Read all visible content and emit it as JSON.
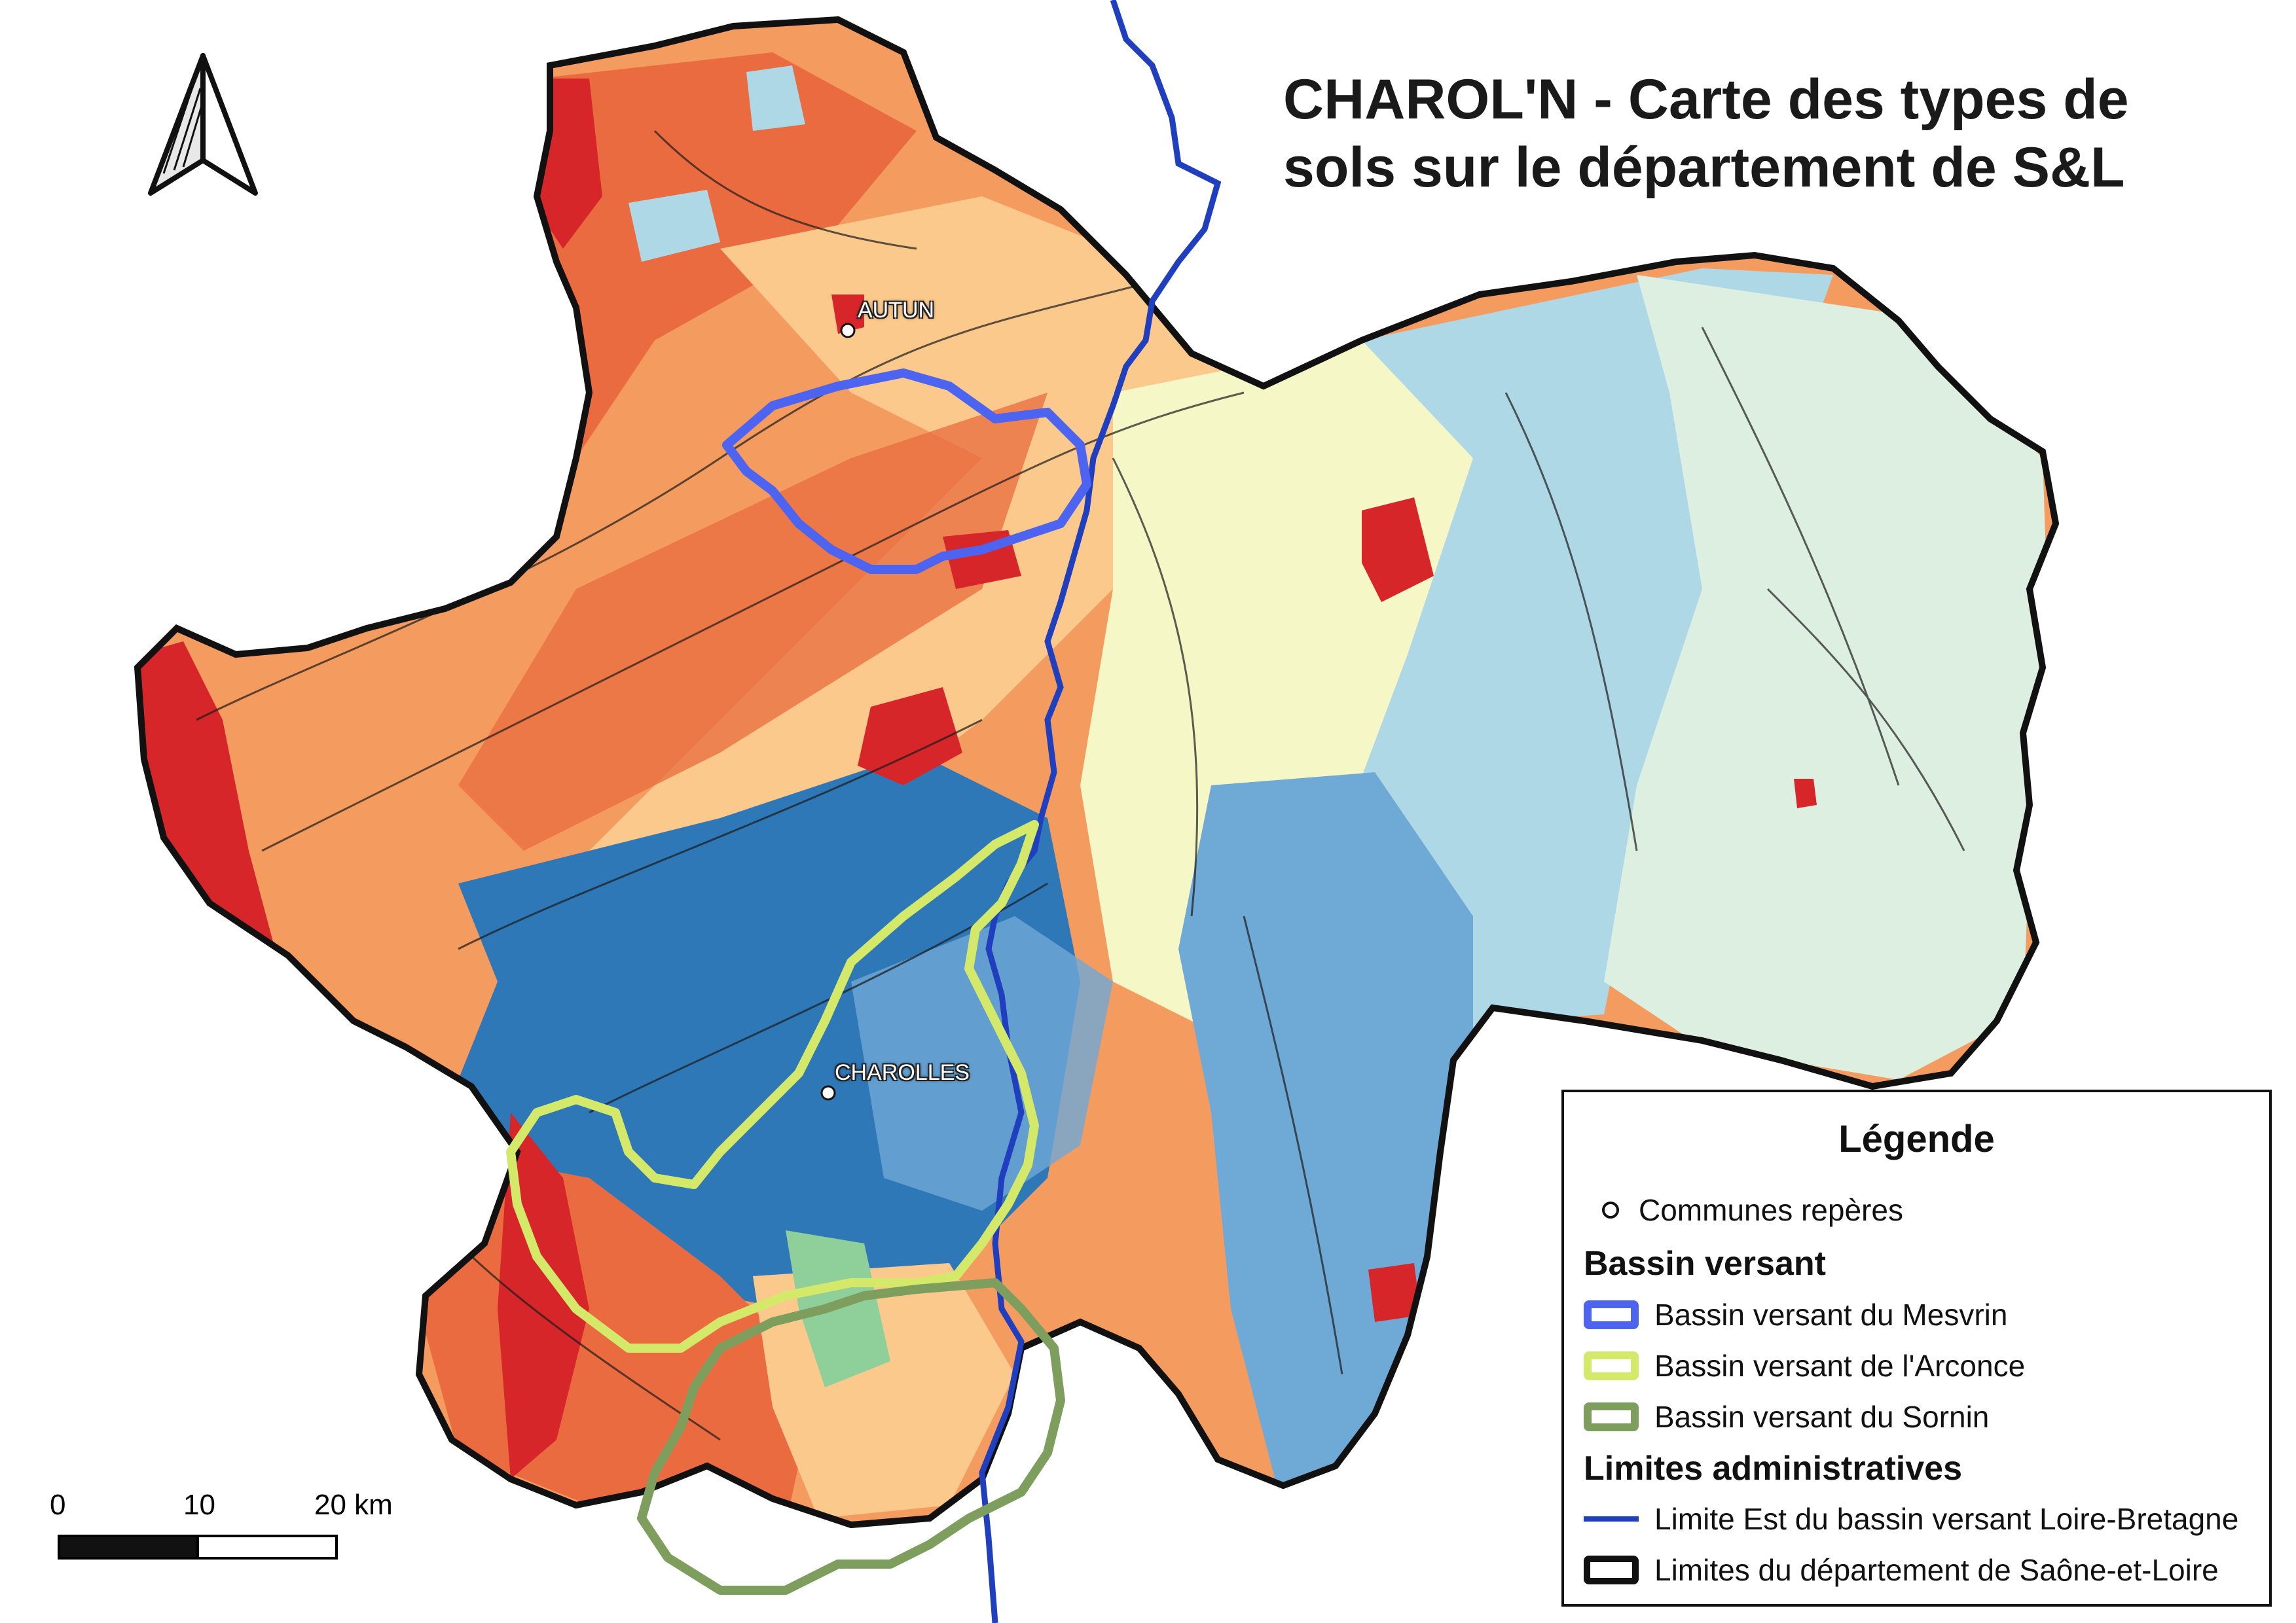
{
  "title": {
    "line1": "CHAROL'N - Carte des types de",
    "line2": "sols sur le département de S&L"
  },
  "towns": [
    {
      "name": "AUTUN"
    },
    {
      "name": "CHAROLLES"
    }
  ],
  "scale": {
    "ticks": [
      "0",
      "10",
      "20 km"
    ]
  },
  "legend": {
    "title": "Légende",
    "point_label": "Communes repères",
    "section_bassin": "Bassin versant",
    "bassins": [
      {
        "label": "Bassin versant du Mesvrin",
        "color": "#4d64f0"
      },
      {
        "label": "Bassin versant de l'Arconce",
        "color": "#d4e86a"
      },
      {
        "label": "Bassin versant du Sornin",
        "color": "#7e9e5e"
      }
    ],
    "section_admin": "Limites administratives",
    "admin": [
      {
        "label": "Limite Est du bassin versant Loire-Bretagne",
        "color": "#1f3fbf"
      },
      {
        "label": "Limites du département de Saône-et-Loire",
        "color": "#111111"
      }
    ]
  },
  "soil_colors": {
    "red": "#d7262a",
    "dark_orange": "#ea6b3f",
    "orange": "#f49b5f",
    "light_orange": "#fcc98c",
    "pale_yellow": "#f5f7c6",
    "pale_green": "#dcefe0",
    "light_blue": "#aed8e6",
    "mid_blue": "#6fa9d6",
    "dark_blue": "#2f78b8",
    "green": "#8fcf9a"
  }
}
